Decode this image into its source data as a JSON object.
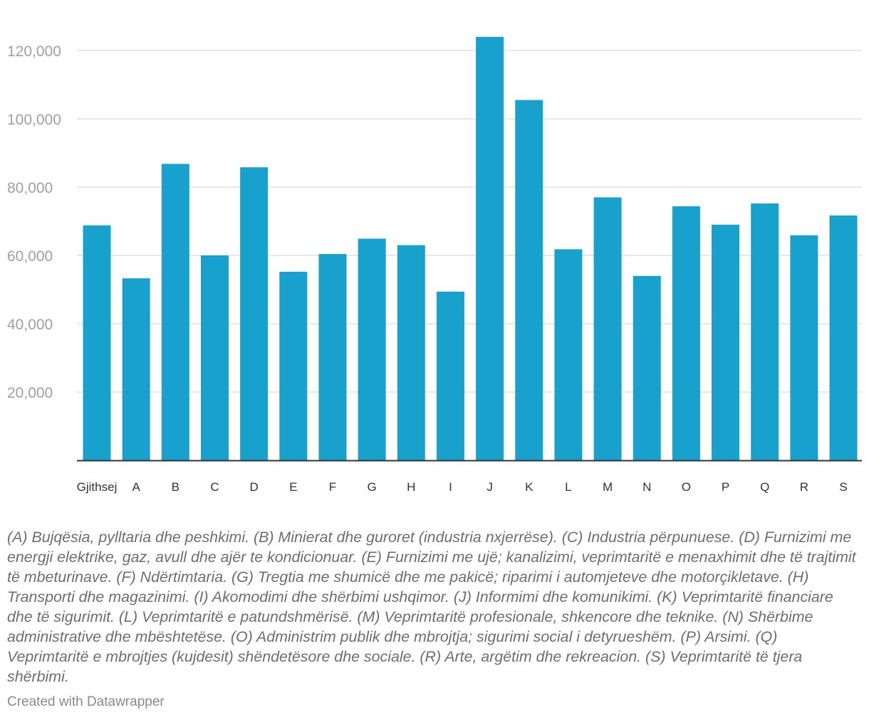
{
  "chart_data": {
    "type": "bar",
    "categories": [
      "Gjithsej",
      "A",
      "B",
      "C",
      "D",
      "E",
      "F",
      "G",
      "H",
      "I",
      "J",
      "K",
      "L",
      "M",
      "N",
      "O",
      "P",
      "Q",
      "R",
      "S"
    ],
    "values": [
      68800,
      53300,
      86800,
      60000,
      85800,
      55200,
      60400,
      64900,
      63000,
      49400,
      124000,
      105500,
      61800,
      77000,
      54000,
      74400,
      69000,
      75200,
      65900,
      71700
    ],
    "ylim": [
      0,
      125000
    ],
    "yticks": [
      20000,
      40000,
      60000,
      80000,
      100000,
      120000
    ],
    "ytick_labels": [
      "20,000",
      "40,000",
      "60,000",
      "80,000",
      "100,000",
      "120,000"
    ],
    "grid": true,
    "bar_color": "#18a1cd",
    "title": "",
    "xlabel": "",
    "ylabel": ""
  },
  "notes": "(A) Bujqësia, pylltaria dhe peshkimi. (B) Minierat dhe guroret (industria nxjerrëse). (C) Industria përpunuese. (D) Furnizimi me energji elektrike, gaz, avull dhe ajër te kondicionuar. (E) Furnizimi me ujë; kanalizimi, veprimtaritë e menaxhimit dhe të trajtimit të mbeturinave. (F) Ndërtimtaria. (G) Tregtia me shumicë dhe me pakicë; riparimi i automjeteve dhe motorçikletave. (H) Transporti dhe magazinimi. (I) Akomodimi dhe shërbimi ushqimor. (J) Informimi dhe komunikimi. (K) Veprimtaritë financiare dhe të sigurimit. (L) Veprimtaritë e patundshmërisë. (M) Veprimtaritë profesionale, shkencore dhe teknike. (N) Shërbime administrative dhe mbështetëse. (O) Administrim publik dhe mbrojtja; sigurimi social i detyrueshëm. (P) Arsimi. (Q) Veprimtaritë e mbrojtjes (kujdesit) shëndetësore dhe sociale. (R) Arte, argëtim dhe rekreacion. (S) Veprimtaritë të tjera shërbimi.",
  "credit": "Created with Datawrapper"
}
